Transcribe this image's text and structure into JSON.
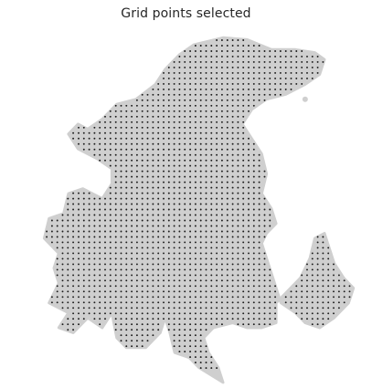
{
  "chart_data": {
    "type": "scatter",
    "title": "Grid points selected",
    "xlabel": "",
    "ylabel": "",
    "grid": false,
    "axes_visible": false,
    "legend": "none",
    "x_range": [
      0,
      35
    ],
    "y_range": [
      0,
      34
    ],
    "colors": {
      "tissue": "#cfcfcf",
      "grid_point": "#1a1a1a",
      "background": "#ffffff"
    },
    "tissue_outline": [
      [
        21.0,
        35.0
      ],
      [
        18.5,
        33.5
      ],
      [
        17.5,
        32.5
      ],
      [
        16.0,
        32.0
      ],
      [
        15.5,
        30.0
      ],
      [
        15.0,
        28.5
      ],
      [
        14.5,
        30.0
      ],
      [
        13.0,
        31.5
      ],
      [
        11.0,
        31.5
      ],
      [
        10.0,
        30.5
      ],
      [
        9.5,
        28.0
      ],
      [
        8.5,
        29.5
      ],
      [
        7.0,
        28.5
      ],
      [
        5.5,
        30.0
      ],
      [
        4.0,
        29.5
      ],
      [
        5.0,
        28.0
      ],
      [
        3.0,
        27.0
      ],
      [
        4.0,
        25.0
      ],
      [
        3.5,
        23.5
      ],
      [
        4.0,
        22.0
      ],
      [
        2.5,
        20.5
      ],
      [
        3.0,
        18.5
      ],
      [
        4.5,
        18.0
      ],
      [
        5.0,
        16.0
      ],
      [
        6.5,
        15.5
      ],
      [
        8.5,
        16.5
      ],
      [
        9.5,
        15.0
      ],
      [
        9.5,
        13.5
      ],
      [
        8.0,
        12.5
      ],
      [
        6.0,
        11.5
      ],
      [
        5.0,
        10.0
      ],
      [
        6.0,
        9.0
      ],
      [
        7.0,
        9.5
      ],
      [
        8.5,
        8.5
      ],
      [
        10.0,
        7.0
      ],
      [
        12.0,
        6.5
      ],
      [
        14.0,
        5.0
      ],
      [
        15.0,
        3.5
      ],
      [
        16.5,
        2.0
      ],
      [
        18.0,
        1.0
      ],
      [
        21.0,
        0.3
      ],
      [
        23.5,
        0.5
      ],
      [
        26.0,
        1.5
      ],
      [
        28.5,
        1.5
      ],
      [
        30.5,
        1.8
      ],
      [
        31.5,
        2.5
      ],
      [
        31.0,
        4.0
      ],
      [
        29.5,
        5.0
      ],
      [
        27.5,
        6.0
      ],
      [
        25.5,
        6.5
      ],
      [
        24.0,
        7.5
      ],
      [
        23.0,
        9.0
      ],
      [
        24.0,
        10.5
      ],
      [
        25.0,
        12.0
      ],
      [
        25.5,
        14.0
      ],
      [
        25.0,
        16.0
      ],
      [
        26.0,
        17.5
      ],
      [
        26.5,
        19.0
      ],
      [
        25.5,
        20.0
      ],
      [
        25.0,
        21.0
      ],
      [
        25.5,
        22.5
      ],
      [
        26.0,
        24.0
      ],
      [
        26.5,
        25.5
      ],
      [
        27.0,
        27.0
      ],
      [
        28.5,
        28.0
      ],
      [
        29.5,
        29.0
      ],
      [
        31.0,
        29.5
      ],
      [
        32.5,
        28.5
      ],
      [
        34.0,
        27.0
      ],
      [
        34.5,
        25.5
      ],
      [
        33.5,
        24.5
      ],
      [
        32.5,
        23.0
      ],
      [
        32.0,
        21.5
      ],
      [
        31.5,
        20.0
      ],
      [
        30.5,
        20.5
      ],
      [
        30.0,
        22.5
      ],
      [
        29.0,
        24.5
      ],
      [
        27.5,
        26.0
      ],
      [
        26.5,
        27.0
      ],
      [
        26.5,
        29.0
      ],
      [
        25.0,
        29.5
      ],
      [
        23.5,
        29.5
      ],
      [
        22.0,
        29.0
      ],
      [
        20.0,
        29.5
      ],
      [
        19.0,
        30.5
      ],
      [
        19.5,
        32.0
      ],
      [
        20.5,
        33.5
      ]
    ],
    "grid_spacing": 0.55,
    "outlier_points": [
      [
        29.5,
        6.5
      ]
    ]
  }
}
